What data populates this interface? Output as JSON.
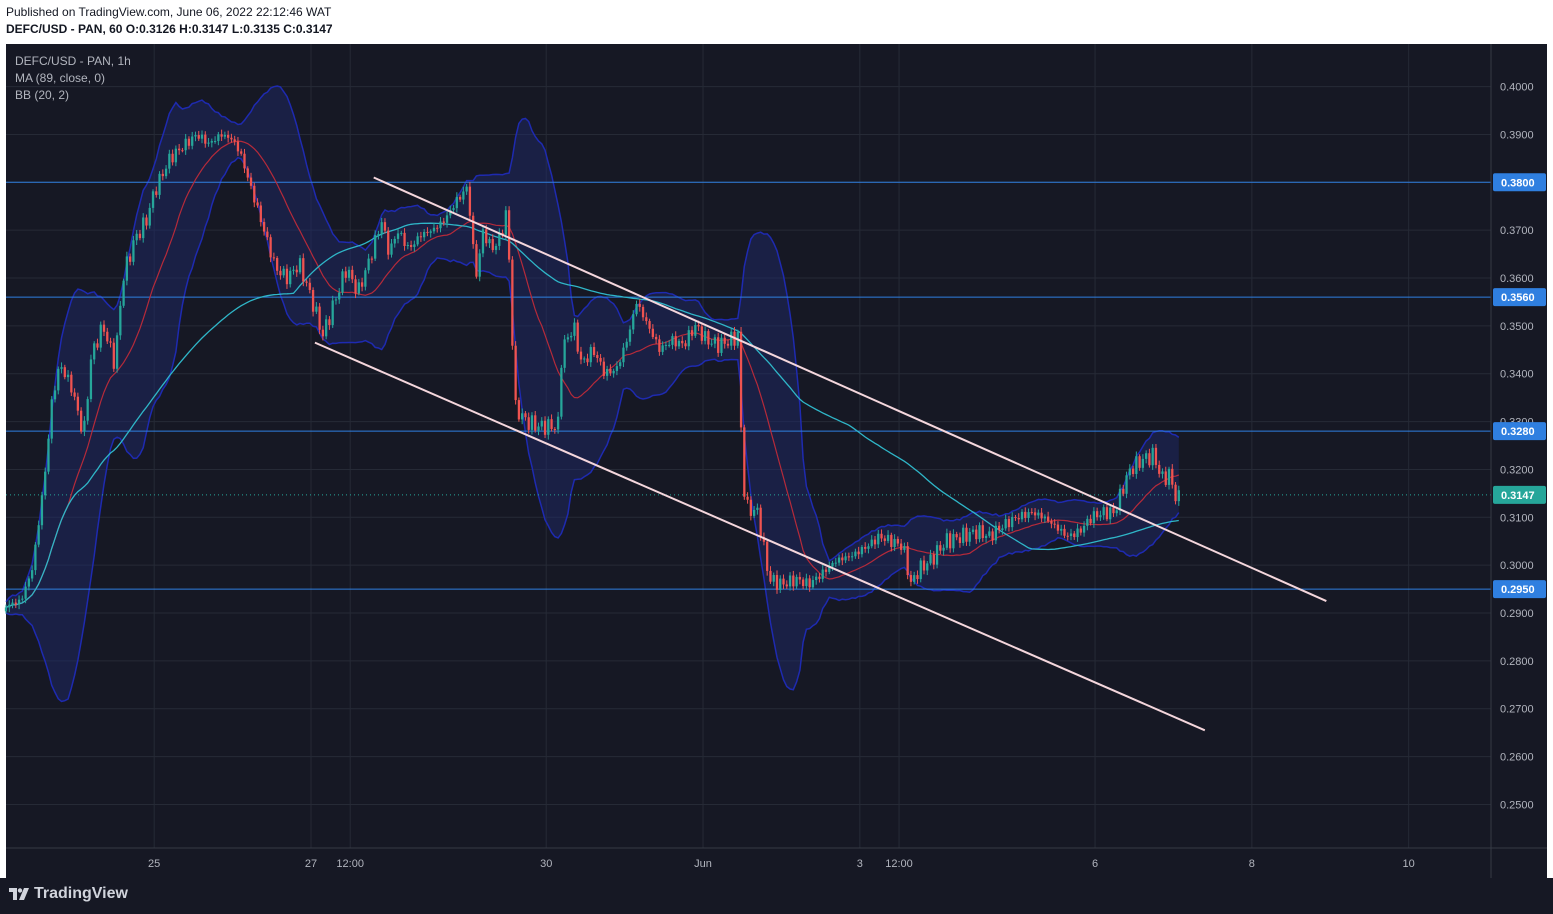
{
  "header": {
    "published": "Published on TradingView.com, June 06, 2022 22:12:46 WAT",
    "ohlc": "DEFC/USD - PAN, 60  O:0.3126  H:0.3147  L:0.3135  C:0.3147"
  },
  "legend": {
    "symbol": "DEFC/USD - PAN, 1h",
    "ma": "MA (89, close, 0)",
    "bb": "BB (20, 2)"
  },
  "footer": {
    "brand": "TradingView"
  },
  "colors": {
    "background": "#161824",
    "grid": "#262a36",
    "up": "#26a69a",
    "down": "#ef5350",
    "ma": "#2fb6c8",
    "bb_basis": "#b52a3a",
    "bb_band": "#1e2ab0",
    "bb_fill": "#1f2a6e",
    "level_line": "#2f7fe0",
    "trendline": "#f4d6dc",
    "axis_text": "#b2b5be"
  },
  "chart_data": {
    "type": "candlestick",
    "title": "DEFC/USD - PAN, 1h",
    "y_ticks": [
      "0.4000",
      "0.3900",
      "0.3800",
      "0.3700",
      "0.3600",
      "0.3500",
      "0.3400",
      "0.3300",
      "0.3200",
      "0.3100",
      "0.3000",
      "0.2900",
      "0.2800",
      "0.2700",
      "0.2600",
      "0.2500"
    ],
    "ylim": [
      0.2409,
      0.4089
    ],
    "x_ticks": [
      {
        "label": "25",
        "t": 25.0
      },
      {
        "label": "27",
        "t": 27.0
      },
      {
        "label": "12:00",
        "t": 27.5
      },
      {
        "label": "30",
        "t": 30.0
      },
      {
        "label": "Jun",
        "t": 32.0
      },
      {
        "label": "3",
        "t": 34.0
      },
      {
        "label": "12:00",
        "t": 34.5
      },
      {
        "label": "6",
        "t": 37.0
      },
      {
        "label": "8",
        "t": 39.0
      },
      {
        "label": "10",
        "t": 41.0
      }
    ],
    "xlim": [
      23.11,
      42.05
    ],
    "grid": true,
    "current_price": {
      "label": "0.3147",
      "value": 0.3147
    },
    "levels": [
      {
        "label": "0.3800",
        "value": 0.38
      },
      {
        "label": "0.3560",
        "value": 0.356
      },
      {
        "label": "0.3280",
        "value": 0.328
      },
      {
        "label": "0.2950",
        "value": 0.295
      }
    ],
    "trendlines": [
      {
        "name": "upper",
        "points": [
          [
            27.8,
            0.381
          ],
          [
            39.95,
            0.2925
          ]
        ]
      },
      {
        "name": "lower",
        "points": [
          [
            27.05,
            0.3465
          ],
          [
            38.4,
            0.2655
          ]
        ]
      }
    ],
    "overlays": [
      "MA (89, close, 0)",
      "BB (20, 2)"
    ],
    "keyframes": [
      [
        23.11,
        0.2915
      ],
      [
        23.3,
        0.2925
      ],
      [
        23.45,
        0.2995
      ],
      [
        23.6,
        0.318
      ],
      [
        23.7,
        0.335
      ],
      [
        23.8,
        0.342
      ],
      [
        23.95,
        0.337
      ],
      [
        24.1,
        0.327
      ],
      [
        24.2,
        0.344
      ],
      [
        24.35,
        0.35
      ],
      [
        24.5,
        0.342
      ],
      [
        24.6,
        0.36
      ],
      [
        24.75,
        0.368
      ],
      [
        24.9,
        0.372
      ],
      [
        25.0,
        0.378
      ],
      [
        25.2,
        0.385
      ],
      [
        25.4,
        0.388
      ],
      [
        25.55,
        0.39
      ],
      [
        25.7,
        0.388
      ],
      [
        25.85,
        0.39
      ],
      [
        26.0,
        0.389
      ],
      [
        26.1,
        0.386
      ],
      [
        26.25,
        0.378
      ],
      [
        26.4,
        0.37
      ],
      [
        26.55,
        0.362
      ],
      [
        26.7,
        0.36
      ],
      [
        26.85,
        0.363
      ],
      [
        27.0,
        0.356
      ],
      [
        27.15,
        0.348
      ],
      [
        27.3,
        0.355
      ],
      [
        27.45,
        0.362
      ],
      [
        27.6,
        0.357
      ],
      [
        27.75,
        0.364
      ],
      [
        27.9,
        0.372
      ],
      [
        28.0,
        0.365
      ],
      [
        28.1,
        0.37
      ],
      [
        28.25,
        0.366
      ],
      [
        28.4,
        0.369
      ],
      [
        28.55,
        0.37
      ],
      [
        28.7,
        0.372
      ],
      [
        28.85,
        0.376
      ],
      [
        29.0,
        0.379
      ],
      [
        29.1,
        0.36
      ],
      [
        29.2,
        0.37
      ],
      [
        29.3,
        0.366
      ],
      [
        29.4,
        0.368
      ],
      [
        29.5,
        0.374
      ],
      [
        29.55,
        0.355
      ],
      [
        29.6,
        0.333
      ],
      [
        29.75,
        0.33
      ],
      [
        29.9,
        0.329
      ],
      [
        30.0,
        0.329
      ],
      [
        30.15,
        0.329
      ],
      [
        30.2,
        0.345
      ],
      [
        30.35,
        0.35
      ],
      [
        30.45,
        0.342
      ],
      [
        30.6,
        0.345
      ],
      [
        30.75,
        0.34
      ],
      [
        30.9,
        0.341
      ],
      [
        31.05,
        0.348
      ],
      [
        31.15,
        0.355
      ],
      [
        31.3,
        0.35
      ],
      [
        31.45,
        0.345
      ],
      [
        31.6,
        0.347
      ],
      [
        31.75,
        0.346
      ],
      [
        31.9,
        0.35
      ],
      [
        32.05,
        0.347
      ],
      [
        32.2,
        0.346
      ],
      [
        32.35,
        0.347
      ],
      [
        32.45,
        0.348
      ],
      [
        32.5,
        0.32
      ],
      [
        32.55,
        0.312
      ],
      [
        32.7,
        0.311
      ],
      [
        32.8,
        0.301
      ],
      [
        32.85,
        0.297
      ],
      [
        33.0,
        0.296
      ],
      [
        33.2,
        0.297
      ],
      [
        33.35,
        0.296
      ],
      [
        33.5,
        0.298
      ],
      [
        33.7,
        0.301
      ],
      [
        33.9,
        0.302
      ],
      [
        34.1,
        0.304
      ],
      [
        34.25,
        0.306
      ],
      [
        34.4,
        0.305
      ],
      [
        34.55,
        0.304
      ],
      [
        34.65,
        0.296
      ],
      [
        34.75,
        0.299
      ],
      [
        34.9,
        0.301
      ],
      [
        35.1,
        0.305
      ],
      [
        35.3,
        0.306
      ],
      [
        35.5,
        0.307
      ],
      [
        35.65,
        0.306
      ],
      [
        35.8,
        0.308
      ],
      [
        36.0,
        0.31
      ],
      [
        36.2,
        0.311
      ],
      [
        36.35,
        0.31
      ],
      [
        36.5,
        0.308
      ],
      [
        36.65,
        0.306
      ],
      [
        36.8,
        0.307
      ],
      [
        36.95,
        0.31
      ],
      [
        37.1,
        0.311
      ],
      [
        37.25,
        0.311
      ],
      [
        37.35,
        0.316
      ],
      [
        37.45,
        0.32
      ],
      [
        37.6,
        0.322
      ],
      [
        37.75,
        0.323
      ],
      [
        37.85,
        0.318
      ],
      [
        37.95,
        0.319
      ],
      [
        38.05,
        0.313
      ],
      [
        38.08,
        0.3147
      ]
    ]
  }
}
